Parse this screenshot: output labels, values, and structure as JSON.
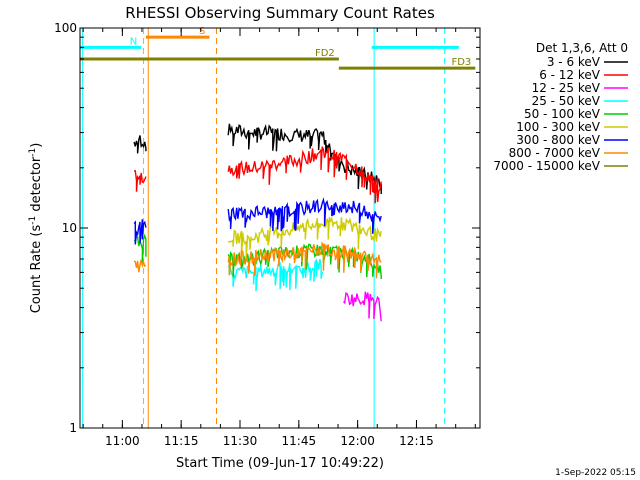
{
  "chart_data": {
    "type": "line",
    "title": "RHESSI Observing Summary Count Rates",
    "xlabel": "Start Time (09-Jun-17 10:49:22)",
    "ylabel": "Count Rate (s",
    "ylabel_sup": "-1",
    "ylabel_mid": " detector",
    "ylabel_sup2": "-1",
    "ylabel_end": ")",
    "yscale": "log",
    "ylim": [
      1,
      100
    ],
    "xlim_minutes": [
      10.82,
      12.52
    ],
    "x_ticks": [
      "11:00",
      "11:15",
      "11:30",
      "11:45",
      "12:00",
      "12:15"
    ],
    "y_ticks": [
      "1",
      "10",
      "100"
    ],
    "legend_title": "Det 1,3,6, Att 0",
    "legend_position": "right",
    "series": [
      {
        "name": "3 - 6 keV",
        "color": "#000000",
        "segments": [
          {
            "t": [
              11.05,
              11.07,
              11.09,
              11.1
            ],
            "v": [
              27,
              28,
              27,
              27
            ]
          },
          {
            "t": [
              11.45,
              11.55,
              11.65,
              11.75,
              11.85,
              11.95,
              12.05,
              12.1
            ],
            "v": [
              31,
              30,
              30,
              29,
              29,
              20,
              18,
              17
            ]
          }
        ]
      },
      {
        "name": "6 - 12 keV",
        "color": "#ff0000",
        "segments": [
          {
            "t": [
              11.05,
              11.07,
              11.09,
              11.1
            ],
            "v": [
              18,
              19,
              18,
              18
            ]
          },
          {
            "t": [
              11.45,
              11.55,
              11.65,
              11.75,
              11.85,
              11.95,
              12.05,
              12.1
            ],
            "v": [
              20,
              20,
              21,
              22,
              24,
              22,
              18,
              16
            ]
          }
        ]
      },
      {
        "name": "12 - 25 keV",
        "color": "#ff00ff",
        "segments": [
          {
            "t": [
              11.94,
              11.99,
              12.04,
              12.09,
              12.1
            ],
            "v": [
              4.5,
              4.4,
              4.5,
              4.3,
              3.2
            ]
          }
        ]
      },
      {
        "name": "25 - 50 keV",
        "color": "#00ffff",
        "segments": [
          {
            "t": [
              11.45,
              11.55,
              11.65,
              11.75,
              11.85
            ],
            "v": [
              6,
              6,
              6.2,
              6.3,
              6.5
            ]
          }
        ]
      },
      {
        "name": "50 - 100 keV",
        "color": "#00cc00",
        "segments": [
          {
            "t": [
              11.05,
              11.07,
              11.09,
              11.1
            ],
            "v": [
              8.5,
              8.5,
              8.5,
              8.5
            ]
          },
          {
            "t": [
              11.45,
              11.55,
              11.65,
              11.75,
              11.85,
              11.95,
              12.05,
              12.1
            ],
            "v": [
              7,
              7,
              7.5,
              7.6,
              7.8,
              7.5,
              7,
              6.2
            ]
          }
        ]
      },
      {
        "name": "100 - 300 keV",
        "color": "#cccc00",
        "segments": [
          {
            "t": [
              11.45,
              11.55,
              11.65,
              11.75,
              11.85,
              11.95,
              12.05,
              12.1
            ],
            "v": [
              9,
              9,
              9.5,
              10,
              10.5,
              10.5,
              9.5,
              9
            ]
          }
        ]
      },
      {
        "name": "300 - 800 keV",
        "color": "#0000ff",
        "segments": [
          {
            "t": [
              11.05,
              11.07,
              11.09,
              11.1
            ],
            "v": [
              10,
              10,
              10.5,
              10
            ]
          },
          {
            "t": [
              11.45,
              11.55,
              11.65,
              11.75,
              11.85,
              11.95,
              12.05,
              12.1
            ],
            "v": [
              12,
              12,
              12,
              12.5,
              13,
              13,
              12,
              11
            ]
          }
        ]
      },
      {
        "name": "800 - 7000 keV",
        "color": "#ff8800",
        "segments": [
          {
            "t": [
              11.05,
              11.07,
              11.09,
              11.1
            ],
            "v": [
              6.5,
              6.5,
              6.5,
              6.5
            ]
          },
          {
            "t": [
              11.45,
              11.55,
              11.65,
              11.75,
              11.85,
              11.95,
              12.05,
              12.1
            ],
            "v": [
              7,
              7.2,
              7.4,
              7.6,
              7.8,
              7.6,
              7.2,
              6.8
            ]
          }
        ]
      },
      {
        "name": "7000 - 15000 keV",
        "color": "#808000",
        "segments": []
      }
    ],
    "annotations": [
      {
        "label": "S",
        "color": "#ff8800",
        "t_start": 11.1,
        "t_end": 11.37,
        "y": 90
      },
      {
        "label": "N",
        "color": "#00ffff",
        "t_start": 10.82,
        "t_end": 11.08,
        "y": 80
      },
      {
        "label": "",
        "color": "#00ffff",
        "t_start": 12.06,
        "t_end": 12.43,
        "y": 80
      },
      {
        "label": "FD2",
        "color": "#808000",
        "t_start": 10.82,
        "t_end": 11.92,
        "y": 70
      },
      {
        "label": "FD3",
        "color": "#808000",
        "t_start": 11.92,
        "t_end": 12.5,
        "y": 63
      }
    ],
    "vlines": [
      {
        "t": 10.83,
        "color": "#00ffff",
        "dash": false
      },
      {
        "t": 11.09,
        "color": "#00ffff",
        "dash": true
      },
      {
        "t": 11.11,
        "color": "#ff8800",
        "dash": false
      },
      {
        "t": 11.4,
        "color": "#ff8800",
        "dash": true
      },
      {
        "t": 12.07,
        "color": "#00ffff",
        "dash": false
      },
      {
        "t": 12.37,
        "color": "#00ffff",
        "dash": true
      }
    ],
    "footer": "1-Sep-2022 05:15"
  }
}
